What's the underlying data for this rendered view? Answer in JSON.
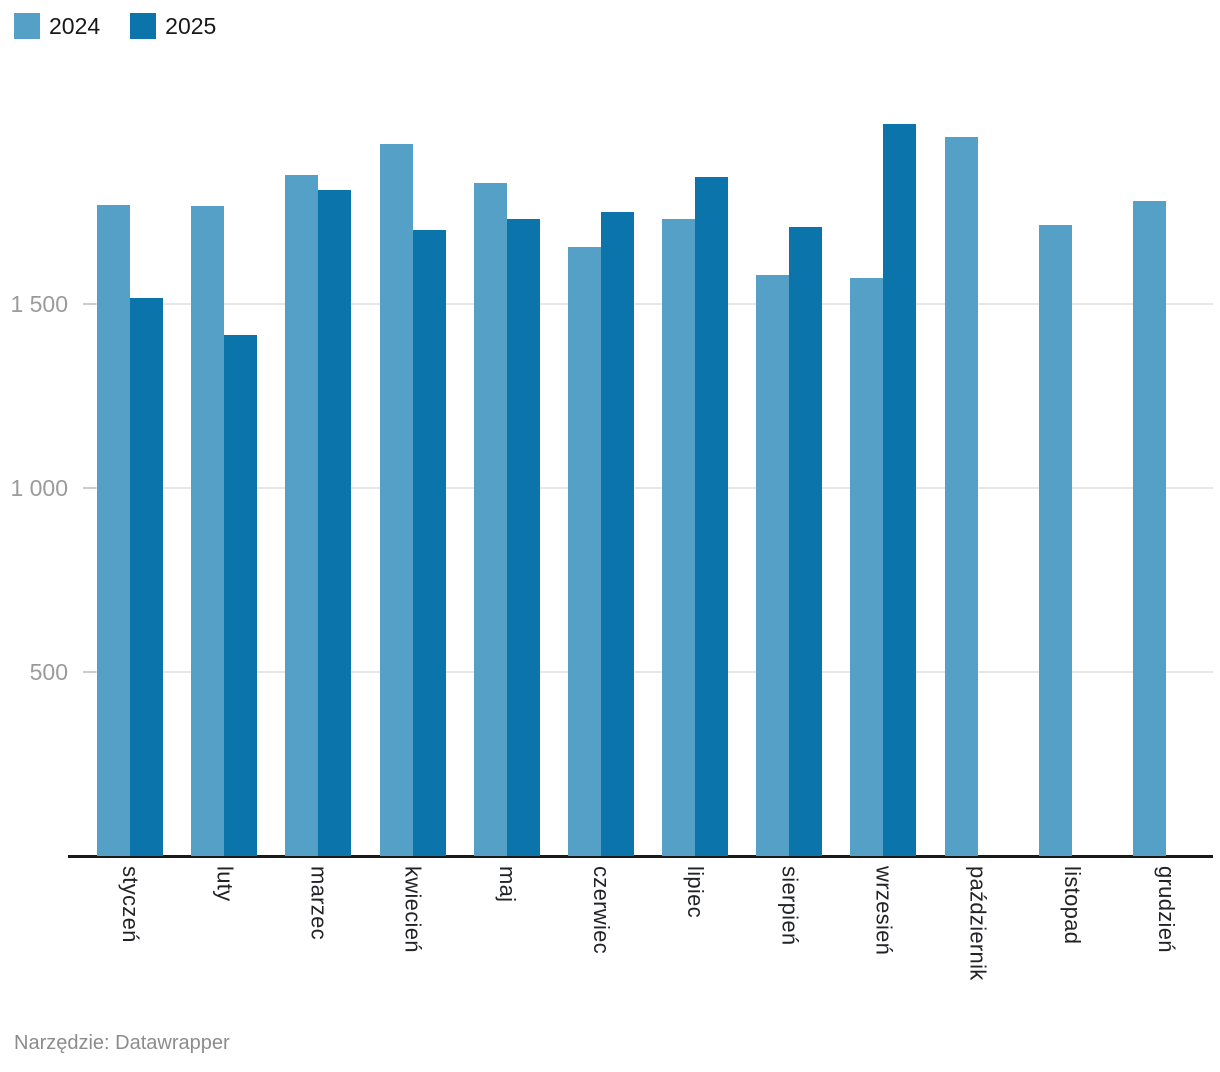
{
  "legend": {
    "items": [
      {
        "label": "2024",
        "color": "#55a0c6"
      },
      {
        "label": "2025",
        "color": "#0b74ab"
      }
    ]
  },
  "footer": {
    "text": "Narzędzie: Datawrapper"
  },
  "colors": {
    "series_2024": "#55a0c6",
    "series_2025": "#0b74ab",
    "gridline": "#e7e7e7",
    "tick": "#cbcbcb",
    "axis": "#1a1a1a",
    "ytick_text": "#9b9b9b",
    "xlabel_text": "#222326",
    "footer_text": "#8c8c8c"
  },
  "chart_data": {
    "type": "bar",
    "title": "",
    "xlabel": "",
    "ylabel": "",
    "categories": [
      "styczeń",
      "luty",
      "marzec",
      "kwiecień",
      "maj",
      "czerwiec",
      "lipiec",
      "sierpień",
      "wrzesień",
      "październik",
      "listopad",
      "grudzień"
    ],
    "series": [
      {
        "name": "2024",
        "values": [
          1770,
          1765,
          1850,
          1935,
          1830,
          1655,
          1730,
          1580,
          1570,
          1955,
          1715,
          1780
        ]
      },
      {
        "name": "2025",
        "values": [
          1515,
          1415,
          1810,
          1700,
          1730,
          1750,
          1845,
          1710,
          1990,
          null,
          null,
          null
        ]
      }
    ],
    "yticks": [
      {
        "value": 500,
        "label": "500"
      },
      {
        "value": 1000,
        "label": "1 000"
      },
      {
        "value": 1500,
        "label": "1 500"
      }
    ],
    "ylim": [
      0,
      2000
    ],
    "grid": "horizontal",
    "legend_position": "top-left"
  }
}
